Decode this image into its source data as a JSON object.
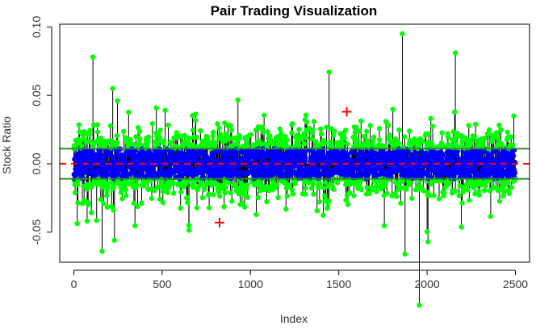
{
  "chart_data": {
    "type": "scatter",
    "title": "Pair Trading Visualization",
    "xlabel": "Index",
    "ylabel": "Stock Ratio",
    "xlim": [
      -80,
      2580
    ],
    "ylim": [
      -0.072,
      0.102
    ],
    "x_ticks": [
      0,
      500,
      1000,
      1500,
      2000,
      2500
    ],
    "x_tick_labels": [
      "0",
      "500",
      "1000",
      "1500",
      "2000",
      "2500"
    ],
    "y_ticks": [
      -0.05,
      0.0,
      0.05,
      0.1
    ],
    "y_tick_labels": [
      "-0.05",
      "0.00",
      "0.05",
      "0.10"
    ],
    "grid": false,
    "legend": "none",
    "n_points": 2500,
    "noise_sd": 0.012,
    "mean_line": {
      "y": 0.0,
      "color": "#ff0000",
      "style": "dashed"
    },
    "band_lines": [
      {
        "y": 0.011,
        "color": "#2e8b2e"
      },
      {
        "y": -0.011,
        "color": "#2e8b2e"
      }
    ],
    "colors": {
      "spike": "#000000",
      "inside_band": "#0000ff",
      "outside_band": "#00ff00",
      "trade_marker": "#ff0000"
    },
    "notable_points": [
      {
        "x": 108,
        "y": 0.078
      },
      {
        "x": 160,
        "y": -0.064
      },
      {
        "x": 220,
        "y": 0.055
      },
      {
        "x": 230,
        "y": -0.056
      },
      {
        "x": 1445,
        "y": 0.067
      },
      {
        "x": 1860,
        "y": 0.095
      },
      {
        "x": 1875,
        "y": -0.066
      },
      {
        "x": 2005,
        "y": -0.057
      },
      {
        "x": 2160,
        "y": 0.081
      }
    ],
    "trade_markers": [
      {
        "x": 825,
        "y": -0.043
      },
      {
        "x": 1545,
        "y": 0.038
      }
    ]
  }
}
